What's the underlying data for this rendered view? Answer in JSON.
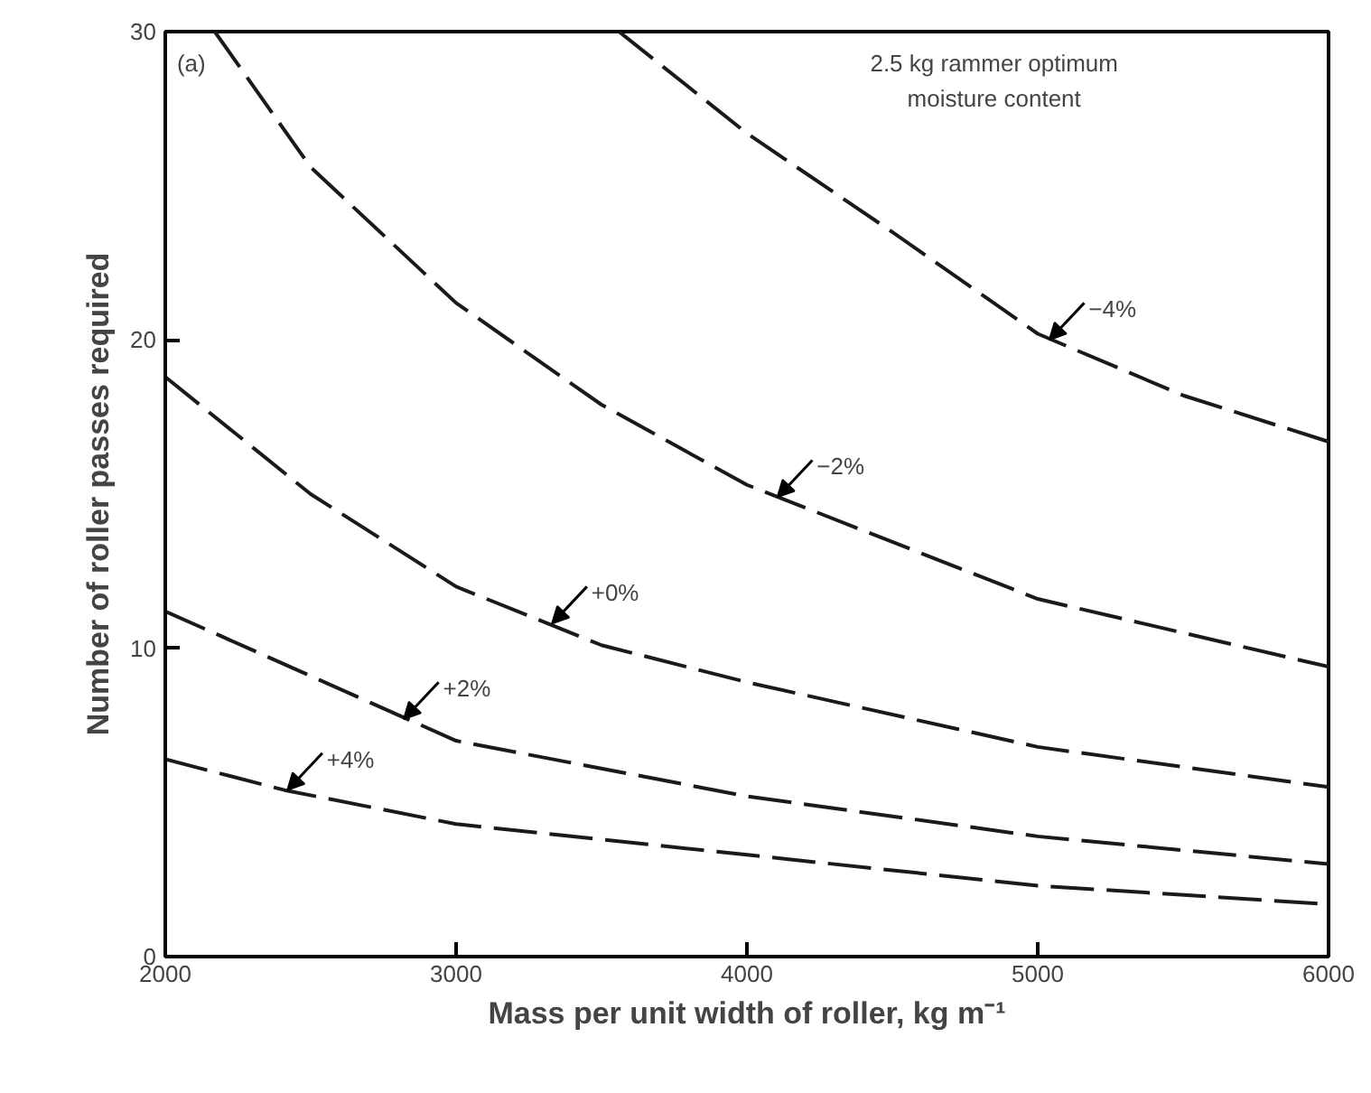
{
  "chart_data": {
    "type": "line",
    "xlabel": "Mass per unit width of roller, kg m⁻¹",
    "ylabel": "Number of roller passes required",
    "xlim": [
      2000,
      6000
    ],
    "xticks": [
      2000,
      3000,
      4000,
      5000,
      6000
    ],
    "ylim": [
      0,
      30
    ],
    "yticks": [
      0,
      10,
      20,
      30
    ],
    "grid": false,
    "marker": "none",
    "line_style": "dashed",
    "series": [
      {
        "color": "#1a1a1a",
        "x": [
          3560,
          4000,
          4500,
          5000,
          5500,
          6000
        ],
        "values": [
          30,
          26.7,
          23.5,
          20.2,
          18.2,
          16.7
        ]
      },
      {
        "color": "#1a1a1a",
        "x": [
          2170,
          2500,
          3000,
          3500,
          4000,
          5000,
          6000
        ],
        "values": [
          30,
          25.6,
          21.2,
          17.9,
          15.3,
          11.6,
          9.4
        ]
      },
      {
        "color": "#1a1a1a",
        "x": [
          2000,
          2500,
          3000,
          3500,
          4000,
          5000,
          6000
        ],
        "values": [
          18.8,
          15.0,
          12.0,
          10.1,
          8.9,
          6.8,
          5.5
        ]
      },
      {
        "color": "#1a1a1a",
        "x": [
          2000,
          2500,
          3000,
          4000,
          5000,
          6000
        ],
        "values": [
          11.2,
          9.1,
          7.0,
          5.2,
          3.9,
          3.0
        ]
      },
      {
        "color": "#1a1a1a",
        "x": [
          2000,
          2410,
          3000,
          4000,
          5000,
          6000
        ],
        "values": [
          6.4,
          5.4,
          4.3,
          3.3,
          2.3,
          1.7
        ]
      }
    ],
    "annotations": [
      {
        "text": "−4%",
        "x": 5040,
        "y": 20.0
      },
      {
        "text": "−2%",
        "x": 4105,
        "y": 14.9
      },
      {
        "text": "+0%",
        "x": 3330,
        "y": 10.8
      },
      {
        "text": "+2%",
        "x": 2820,
        "y": 7.7
      },
      {
        "text": "+4%",
        "x": 2420,
        "y": 5.4
      },
      "(a)",
      "2.5 kg rammer optimum\nmoisture content"
    ]
  }
}
